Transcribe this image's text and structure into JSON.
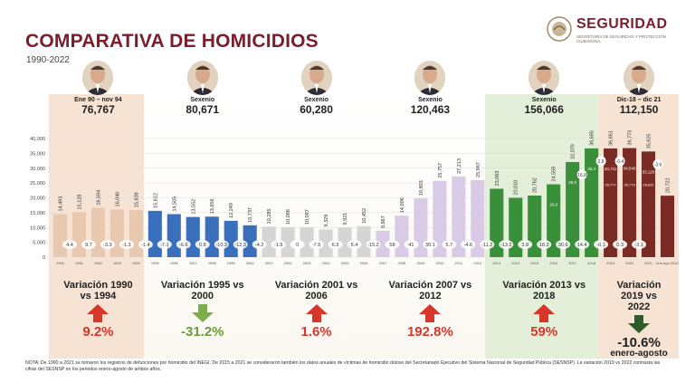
{
  "header": {
    "title": "COMPARATIVA DE HOMICIDIOS",
    "subtitle": "1990-2022",
    "logo_text": "SEGURIDAD",
    "logo_subtext": "SECRETARÍA DE SEGURIDAD Y PROTECCIÓN CIUDADANA"
  },
  "colors": {
    "period1": "#4a7fc1",
    "period2": "#3a6fbb",
    "period3": "#c7c7c7",
    "period4": "#c9b8d9",
    "period5": "#3a8f3a",
    "period6": "#7a2b24",
    "up_arrow": "#d9362b",
    "down_arrow_light": "#9bcf6a",
    "down_arrow_dark": "#2f5a2a"
  },
  "periods": [
    {
      "label": "Ene 90 – nov 94",
      "total": "76,767",
      "avatar": "portrait-icon"
    },
    {
      "label": "Sexenio",
      "total": "80,671",
      "avatar": "portrait-icon"
    },
    {
      "label": "Sexenio",
      "total": "60,280",
      "avatar": "portrait-icon"
    },
    {
      "label": "Sexenio",
      "total": "120,463",
      "avatar": "portrait-icon"
    },
    {
      "label": "Sexenio",
      "total": "156,066",
      "avatar": "portrait-icon"
    },
    {
      "label": "Dic-18 – dic 21",
      "total": "112,150",
      "avatar": "portrait-icon"
    }
  ],
  "variations": [
    {
      "title": "Variación 1990 vs 1994",
      "value": "9.2%",
      "direction": "up",
      "color": "#d9362b"
    },
    {
      "title": "Variación 1995 vs 2000",
      "value": "-31.2%",
      "direction": "down",
      "color": "#7cae4a"
    },
    {
      "title": "Variación 2001 vs 2006",
      "value": "1.6%",
      "direction": "up",
      "color": "#d9362b"
    },
    {
      "title": "Variación 2007 vs 2012",
      "value": "192.8%",
      "direction": "up",
      "color": "#d9362b"
    },
    {
      "title": "Variación 2013 vs 2018",
      "value": "59%",
      "direction": "up",
      "color": "#d9362b"
    },
    {
      "title": "Variación 2019 vs 2022",
      "value": "-10.6%",
      "extra": "enero-agosto",
      "direction": "down",
      "color": "#2f5a2a"
    }
  ],
  "note": "NOTA: De 1990 a 2021 se tomaron los registros de defunciones por homicidio del INEGI. De 2015 a 2021 se considerarón también los datos anuales de víctimas de homicidio doloso del Secretariado Ejecutivo del Sistema Nacional de Seguridad Pública (SESNSP). La variación 2019 vs 2022 contrasta las cifras del SESNSP en los periodos enero-agosto de ambos años.",
  "chart_data": {
    "type": "bar",
    "ylim": [
      0,
      40000
    ],
    "y_ticks": [
      "40,000",
      "35,000",
      "30,000",
      "25,000",
      "20,000",
      "15,000",
      "10,000",
      "5,000",
      "0"
    ],
    "categories": [
      "1990",
      "1991",
      "1992",
      "1993",
      "1994",
      "1995",
      "1996",
      "1997",
      "1998",
      "1999",
      "2000",
      "2001",
      "2002",
      "2003",
      "2004",
      "2005",
      "2006",
      "2007",
      "2008",
      "2009",
      "2010",
      "2011",
      "2012",
      "2013",
      "2014",
      "2015",
      "2016",
      "2017",
      "2018",
      "2019",
      "2020",
      "2021",
      "enero-agosto 2022"
    ],
    "values": [
      14493,
      15128,
      16594,
      16040,
      15839,
      15612,
      14505,
      13552,
      13656,
      12249,
      10737,
      10285,
      10088,
      10087,
      9329,
      9921,
      10452,
      8867,
      14006,
      19803,
      25757,
      27213,
      25967,
      23063,
      20010,
      20762,
      24559,
      32079,
      36685,
      36661,
      36773,
      35625,
      20722
    ],
    "labels": [
      "14,493",
      "15,128",
      "16,594",
      "16,040",
      "15,839",
      "15,612",
      "14,505",
      "13,552",
      "13,656",
      "12,249",
      "10,737",
      "10,285",
      "10,088",
      "10,087",
      "9,329",
      "9,921",
      "10,452",
      "8,867",
      "14,006",
      "19,803",
      "25,757",
      "27,213",
      "25,967",
      "23,063",
      "20,010",
      "20,762",
      "24,559",
      "32,079",
      "36,685",
      "36,661",
      "36,773",
      "35,625",
      "20,722"
    ],
    "period_index": [
      0,
      0,
      0,
      0,
      0,
      1,
      1,
      1,
      1,
      1,
      1,
      2,
      2,
      2,
      2,
      2,
      2,
      3,
      3,
      3,
      3,
      3,
      3,
      4,
      4,
      4,
      4,
      4,
      4,
      5,
      5,
      5,
      5
    ],
    "pct_changes": [
      "4.4",
      "9.7",
      "-3.3",
      "-1.3",
      "-1.4",
      "-7.1",
      "-6.6",
      "0.8",
      "-10.3",
      "-12.3",
      "-4.2",
      "-1.9",
      "0",
      "-7.5",
      "6.3",
      "5.4",
      "-15.2",
      "58",
      "41",
      "30.1",
      "5.7",
      "-4.6",
      "-11.2",
      "-13.2",
      "3.8",
      "18.3",
      "30.6",
      "14.4",
      "-0.1",
      "0.3",
      "-3.1"
    ],
    "pct_index": [
      1,
      2,
      3,
      4,
      5,
      6,
      7,
      8,
      9,
      10,
      11,
      12,
      13,
      14,
      15,
      16,
      17,
      18,
      19,
      20,
      21,
      22,
      23,
      24,
      25,
      26,
      27,
      28,
      29,
      30,
      31
    ],
    "sesnsp_values": [
      "26,0",
      "28,0",
      "28,4",
      "34,711",
      "34,540",
      "33,120"
    ],
    "sesnsp_pct": [
      "16.8",
      "2.8",
      "-0.4",
      "-3.6"
    ],
    "sesnsp_sub": [
      "29,777",
      "29,773",
      "28,691"
    ],
    "grid": true
  }
}
